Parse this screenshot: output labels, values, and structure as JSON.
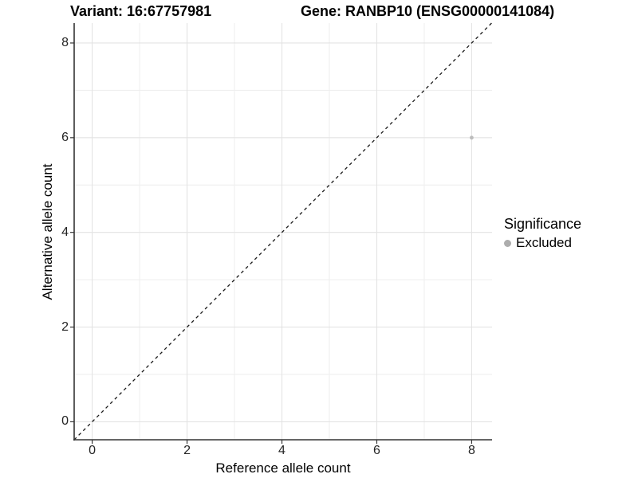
{
  "titles": {
    "left": "Variant: 16:67757981",
    "right": "Gene: RANBP10 (ENSG00000141084)"
  },
  "chart_data": {
    "type": "scatter",
    "title_left": "Variant: 16:67757981",
    "title_right": "Gene: RANBP10 (ENSG00000141084)",
    "xlabel": "Reference allele count",
    "ylabel": "Alternative allele count",
    "xlim": [
      -0.38,
      8.43
    ],
    "ylim": [
      -0.38,
      8.42
    ],
    "x_major_ticks": [
      0,
      2,
      4,
      6,
      8
    ],
    "y_major_ticks": [
      0,
      2,
      4,
      6,
      8
    ],
    "x_minor_ticks": [
      1,
      3,
      5,
      7
    ],
    "y_minor_ticks": [
      1,
      3,
      5,
      7
    ],
    "grid": true,
    "reference_line": {
      "style": "dashed",
      "equation": "y = x",
      "color": "#1a1a1a"
    },
    "series": [
      {
        "name": "Excluded",
        "color": "#bcbcbc",
        "points": [
          {
            "x": 8,
            "y": 6
          }
        ]
      }
    ],
    "legend": {
      "position": "right",
      "title": "Significance",
      "items": [
        {
          "label": "Excluded",
          "color": "#adadad"
        }
      ]
    },
    "colors": {
      "point_excluded": "#bcbcbc",
      "grid_major": "#e3e3e3",
      "grid_minor": "#eeeeee",
      "axis_line": "#343434",
      "text": "#000000"
    }
  }
}
